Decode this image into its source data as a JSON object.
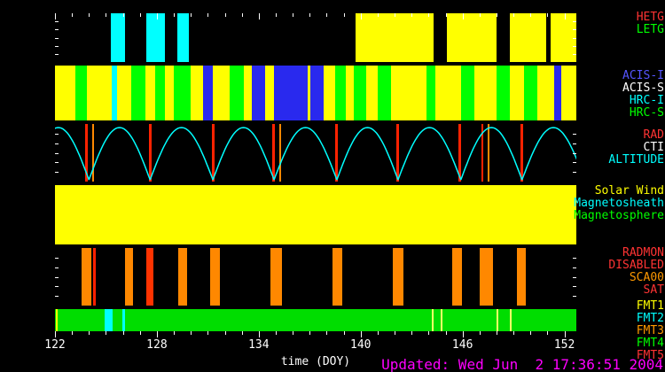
{
  "updated": "Updated: Wed Jun  2 17:36:51 2004",
  "legend_groups": [
    {
      "name": "gratings",
      "items": [
        {
          "text": "HETG",
          "color": "#ff3333"
        },
        {
          "text": "LETG",
          "color": "#00ff00"
        }
      ]
    },
    {
      "name": "instruments",
      "items": [
        {
          "text": "ACIS-I",
          "color": "#5555ff"
        },
        {
          "text": "ACIS-S",
          "color": "#ffffff"
        },
        {
          "text": "HRC-I",
          "color": "#00ffff"
        },
        {
          "text": "HRC-S",
          "color": "#00ff00"
        }
      ]
    },
    {
      "name": "orbit",
      "items": [
        {
          "text": "RAD",
          "color": "#ff3333"
        },
        {
          "text": "CTI",
          "color": "#ffffff"
        },
        {
          "text": "ALTITUDE",
          "color": "#00ffff"
        }
      ]
    },
    {
      "name": "solar",
      "items": [
        {
          "text": "Solar Wind",
          "color": "#ffff00"
        },
        {
          "text": "Magnetosheath",
          "color": "#00ffff"
        },
        {
          "text": "Magnetosphere",
          "color": "#00ff00"
        }
      ]
    },
    {
      "name": "radmon",
      "items": [
        {
          "text": "RADMON",
          "color": "#ff3333"
        },
        {
          "text": "DISABLED",
          "color": "#ff3333"
        },
        {
          "text": "SCA00",
          "color": "#ff9900"
        },
        {
          "text": "SAT",
          "color": "#ff3333"
        }
      ]
    },
    {
      "name": "fmt",
      "items": [
        {
          "text": "FMT1",
          "color": "#ffff00"
        },
        {
          "text": "FMT2",
          "color": "#00ffff"
        },
        {
          "text": "FMT3",
          "color": "#ff9900"
        },
        {
          "text": "FMT4",
          "color": "#00ff00"
        },
        {
          "text": "FMT5",
          "color": "#ff3333"
        }
      ]
    }
  ],
  "chart_data": {
    "type": "timeline",
    "xlabel": "time (DOY)",
    "x_range": [
      122,
      152.7
    ],
    "x_ticks": [
      122,
      128,
      134,
      140,
      146,
      152
    ],
    "x_minor_step": 1,
    "bands": [
      {
        "id": "gratings",
        "background": "#000000",
        "day_ticks": true,
        "edge_ticks": true,
        "segments": [
          {
            "start": 125.3,
            "end": 126.1,
            "color": "#00ffff"
          },
          {
            "start": 127.4,
            "end": 128.5,
            "color": "#00ffff"
          },
          {
            "start": 129.2,
            "end": 129.9,
            "color": "#00ffff"
          },
          {
            "start": 139.7,
            "end": 144.3,
            "color": "#ffff00"
          },
          {
            "start": 145.1,
            "end": 148.0,
            "color": "#ffff00"
          },
          {
            "start": 148.8,
            "end": 150.9,
            "color": "#ffff00"
          },
          {
            "start": 151.2,
            "end": 152.7,
            "color": "#ffff00"
          }
        ]
      },
      {
        "id": "instruments",
        "background": "#ffff00",
        "segments": [
          {
            "start": 123.2,
            "end": 123.9,
            "color": "#00ff00"
          },
          {
            "start": 125.35,
            "end": 125.65,
            "color": "#00ffff"
          },
          {
            "start": 126.5,
            "end": 127.3,
            "color": "#00ff00"
          },
          {
            "start": 127.9,
            "end": 128.5,
            "color": "#00ff00"
          },
          {
            "start": 129.0,
            "end": 130.0,
            "color": "#00ff00"
          },
          {
            "start": 130.7,
            "end": 131.3,
            "color": "#2929ee"
          },
          {
            "start": 132.3,
            "end": 133.1,
            "color": "#00ff00"
          },
          {
            "start": 133.6,
            "end": 134.4,
            "color": "#2929ee"
          },
          {
            "start": 134.9,
            "end": 136.9,
            "color": "#2929ee"
          },
          {
            "start": 137.05,
            "end": 137.8,
            "color": "#2929ee"
          },
          {
            "start": 138.5,
            "end": 139.1,
            "color": "#00ff00"
          },
          {
            "start": 139.6,
            "end": 140.3,
            "color": "#00ff00"
          },
          {
            "start": 141.0,
            "end": 141.8,
            "color": "#00ff00"
          },
          {
            "start": 143.9,
            "end": 144.4,
            "color": "#00ff00"
          },
          {
            "start": 145.9,
            "end": 146.7,
            "color": "#00ff00"
          },
          {
            "start": 148.0,
            "end": 148.8,
            "color": "#00ff00"
          },
          {
            "start": 149.6,
            "end": 150.4,
            "color": "#00ff00"
          },
          {
            "start": 151.4,
            "end": 151.8,
            "color": "#2929ee"
          }
        ]
      },
      {
        "id": "altitude",
        "background": "#000000",
        "edge_ticks": true,
        "curve_color": "#00ffff",
        "perigees": [
          120.4,
          124.0,
          127.6,
          131.3,
          134.9,
          138.6,
          142.2,
          145.9,
          149.5,
          153.2
        ],
        "lines": [
          {
            "x": 123.85,
            "color": "#ff2200",
            "w": 3
          },
          {
            "x": 124.25,
            "color": "#ff8800",
            "w": 2
          },
          {
            "x": 127.6,
            "color": "#ff2200",
            "w": 3
          },
          {
            "x": 131.3,
            "color": "#ff2200",
            "w": 3
          },
          {
            "x": 134.85,
            "color": "#ff2200",
            "w": 3
          },
          {
            "x": 135.25,
            "color": "#ff8800",
            "w": 2
          },
          {
            "x": 138.6,
            "color": "#ff2200",
            "w": 3
          },
          {
            "x": 142.2,
            "color": "#ff2200",
            "w": 3
          },
          {
            "x": 145.85,
            "color": "#ff2200",
            "w": 3
          },
          {
            "x": 147.15,
            "color": "#ff2200",
            "w": 2
          },
          {
            "x": 147.55,
            "color": "#ff8800",
            "w": 2
          },
          {
            "x": 149.5,
            "color": "#ff2200",
            "w": 3
          }
        ]
      },
      {
        "id": "solarwind",
        "background": "#ffff00",
        "segments": []
      },
      {
        "id": "radmon",
        "background": "#000000",
        "edge_ticks": true,
        "segments": [
          {
            "start": 123.55,
            "end": 124.15,
            "color": "#ff8800"
          },
          {
            "start": 124.25,
            "end": 124.4,
            "color": "#ff2200"
          },
          {
            "start": 126.1,
            "end": 126.6,
            "color": "#ff8800"
          },
          {
            "start": 127.4,
            "end": 127.8,
            "color": "#ff3300"
          },
          {
            "start": 129.25,
            "end": 129.8,
            "color": "#ff8800"
          },
          {
            "start": 131.15,
            "end": 131.7,
            "color": "#ff8800"
          },
          {
            "start": 134.7,
            "end": 135.35,
            "color": "#ff8800"
          },
          {
            "start": 138.35,
            "end": 138.9,
            "color": "#ff8800"
          },
          {
            "start": 141.9,
            "end": 142.5,
            "color": "#ff8800"
          },
          {
            "start": 145.4,
            "end": 145.95,
            "color": "#ff8800"
          },
          {
            "start": 147.0,
            "end": 147.8,
            "color": "#ff8800"
          },
          {
            "start": 149.2,
            "end": 149.7,
            "color": "#ff8800"
          }
        ]
      },
      {
        "id": "fmt",
        "background": "#00dd00",
        "segments": [
          {
            "start": 122.05,
            "end": 122.15,
            "color": "#ffff00"
          },
          {
            "start": 124.9,
            "end": 125.4,
            "color": "#00ffff"
          },
          {
            "start": 125.95,
            "end": 126.1,
            "color": "#00ffff"
          },
          {
            "start": 144.2,
            "end": 144.3,
            "color": "#ffff66"
          },
          {
            "start": 144.7,
            "end": 144.8,
            "color": "#ffff66"
          },
          {
            "start": 148.0,
            "end": 148.1,
            "color": "#ffff66"
          },
          {
            "start": 148.8,
            "end": 148.9,
            "color": "#ffff66"
          }
        ]
      }
    ]
  }
}
